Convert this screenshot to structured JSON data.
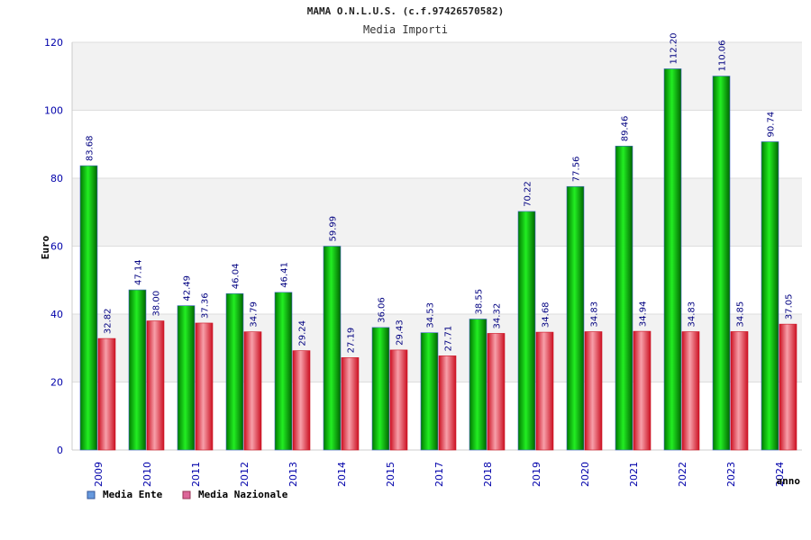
{
  "chart_data": {
    "type": "bar",
    "title": "MAMA O.N.L.U.S. (c.f.97426570582)",
    "subtitle": "Media Importi",
    "xlabel": "anno",
    "ylabel": "Euro",
    "ylim": [
      0,
      120
    ],
    "yticks": [
      "0",
      "20",
      "40",
      "60",
      "80",
      "100",
      "120"
    ],
    "categories": [
      "2009",
      "2010",
      "2011",
      "2012",
      "2013",
      "2014",
      "2015",
      "2017",
      "2018",
      "2019",
      "2020",
      "2021",
      "2022",
      "2023",
      "2024"
    ],
    "series": [
      {
        "name": "Media Ente",
        "color": "#00aa00",
        "values": [
          83.68,
          47.14,
          42.49,
          46.04,
          46.41,
          59.99,
          36.06,
          34.53,
          38.55,
          70.22,
          77.56,
          89.46,
          112.2,
          110.06,
          90.74
        ],
        "labels": [
          "83.68",
          "47.14",
          "42.49",
          "46.04",
          "46.41",
          "59.99",
          "36.06",
          "34.53",
          "38.55",
          "70.22",
          "77.56",
          "89.46",
          "112.20",
          "110.06",
          "90.74"
        ]
      },
      {
        "name": "Media Nazionale",
        "color": "#dd2233",
        "values": [
          32.82,
          38.0,
          37.36,
          34.79,
          29.24,
          27.19,
          29.43,
          27.71,
          34.32,
          34.68,
          34.83,
          34.94,
          34.83,
          34.85,
          37.05
        ],
        "labels": [
          "32.82",
          "38.00",
          "37.36",
          "34.79",
          "29.24",
          "27.19",
          "29.43",
          "27.71",
          "34.32",
          "34.68",
          "34.83",
          "34.94",
          "34.83",
          "34.85",
          "37.05"
        ]
      }
    ],
    "legend": [
      "Media Ente",
      "Media Nazionale"
    ],
    "legend_colors": [
      "#6699dd",
      "#dd6699"
    ],
    "legend_position": "bottom-left",
    "grid": true
  }
}
